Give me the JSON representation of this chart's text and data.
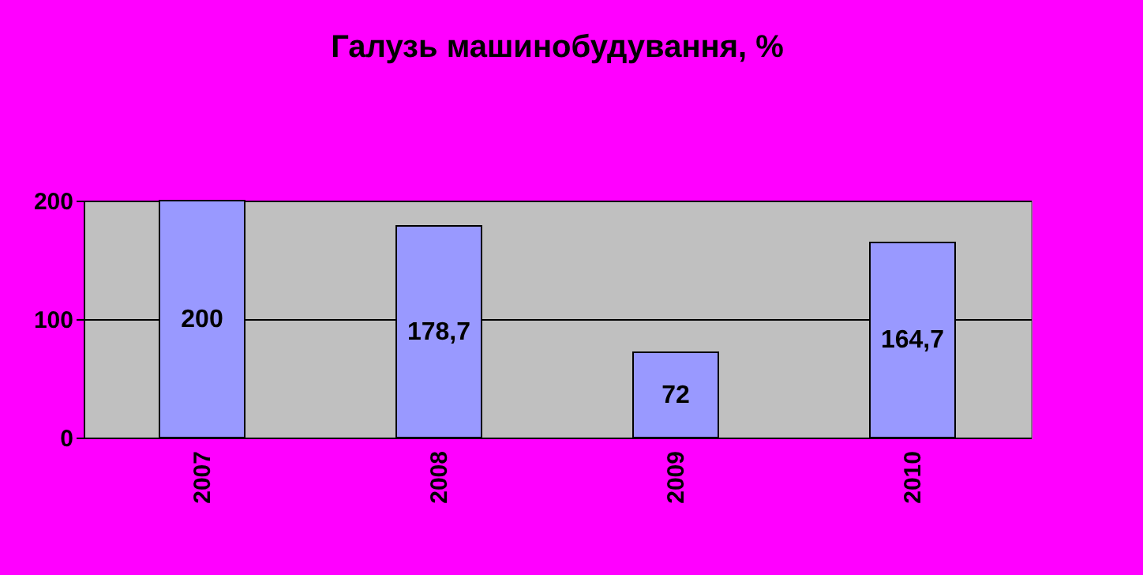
{
  "chart_data": {
    "type": "bar",
    "title": "Галузь машинобудування, %",
    "categories": [
      "2007",
      "2008",
      "2009",
      "2010"
    ],
    "values": [
      200,
      178.7,
      72,
      164.7
    ],
    "value_labels": [
      "200",
      "178,7",
      "72",
      "164,7"
    ],
    "color": "#9999ff",
    "ylim": [
      0,
      200
    ],
    "yticks": [
      0,
      100,
      200
    ],
    "grid": "y"
  }
}
